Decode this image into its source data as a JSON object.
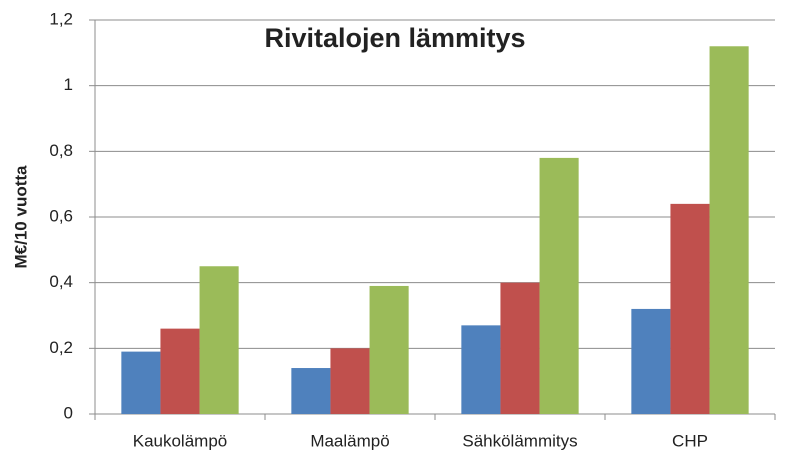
{
  "chart_data": {
    "type": "bar",
    "title": "Rivitalojen lämmitys",
    "y_label": "M€/10 vuotta",
    "categories": [
      "Kaukolämpö",
      "Maalämpö",
      "Sähkölämmitys",
      "CHP"
    ],
    "series": [
      {
        "color": "#4f81bd",
        "values": [
          0.19,
          0.14,
          0.27,
          0.32
        ]
      },
      {
        "color": "#c0504d",
        "values": [
          0.26,
          0.2,
          0.4,
          0.64
        ]
      },
      {
        "color": "#9bbb59",
        "values": [
          0.45,
          0.39,
          0.78,
          1.12
        ]
      }
    ],
    "ylim": [
      0,
      1.2
    ],
    "yticks": [
      0,
      {
        "value": 0.2,
        "label": "0,2"
      },
      {
        "value": 0.4,
        "label": "0,4"
      },
      {
        "value": 0.6,
        "label": "0,6"
      },
      {
        "value": 0.8,
        "label": "0,8"
      },
      1,
      {
        "value": 1.2,
        "label": "1,2"
      }
    ],
    "grid": true
  }
}
